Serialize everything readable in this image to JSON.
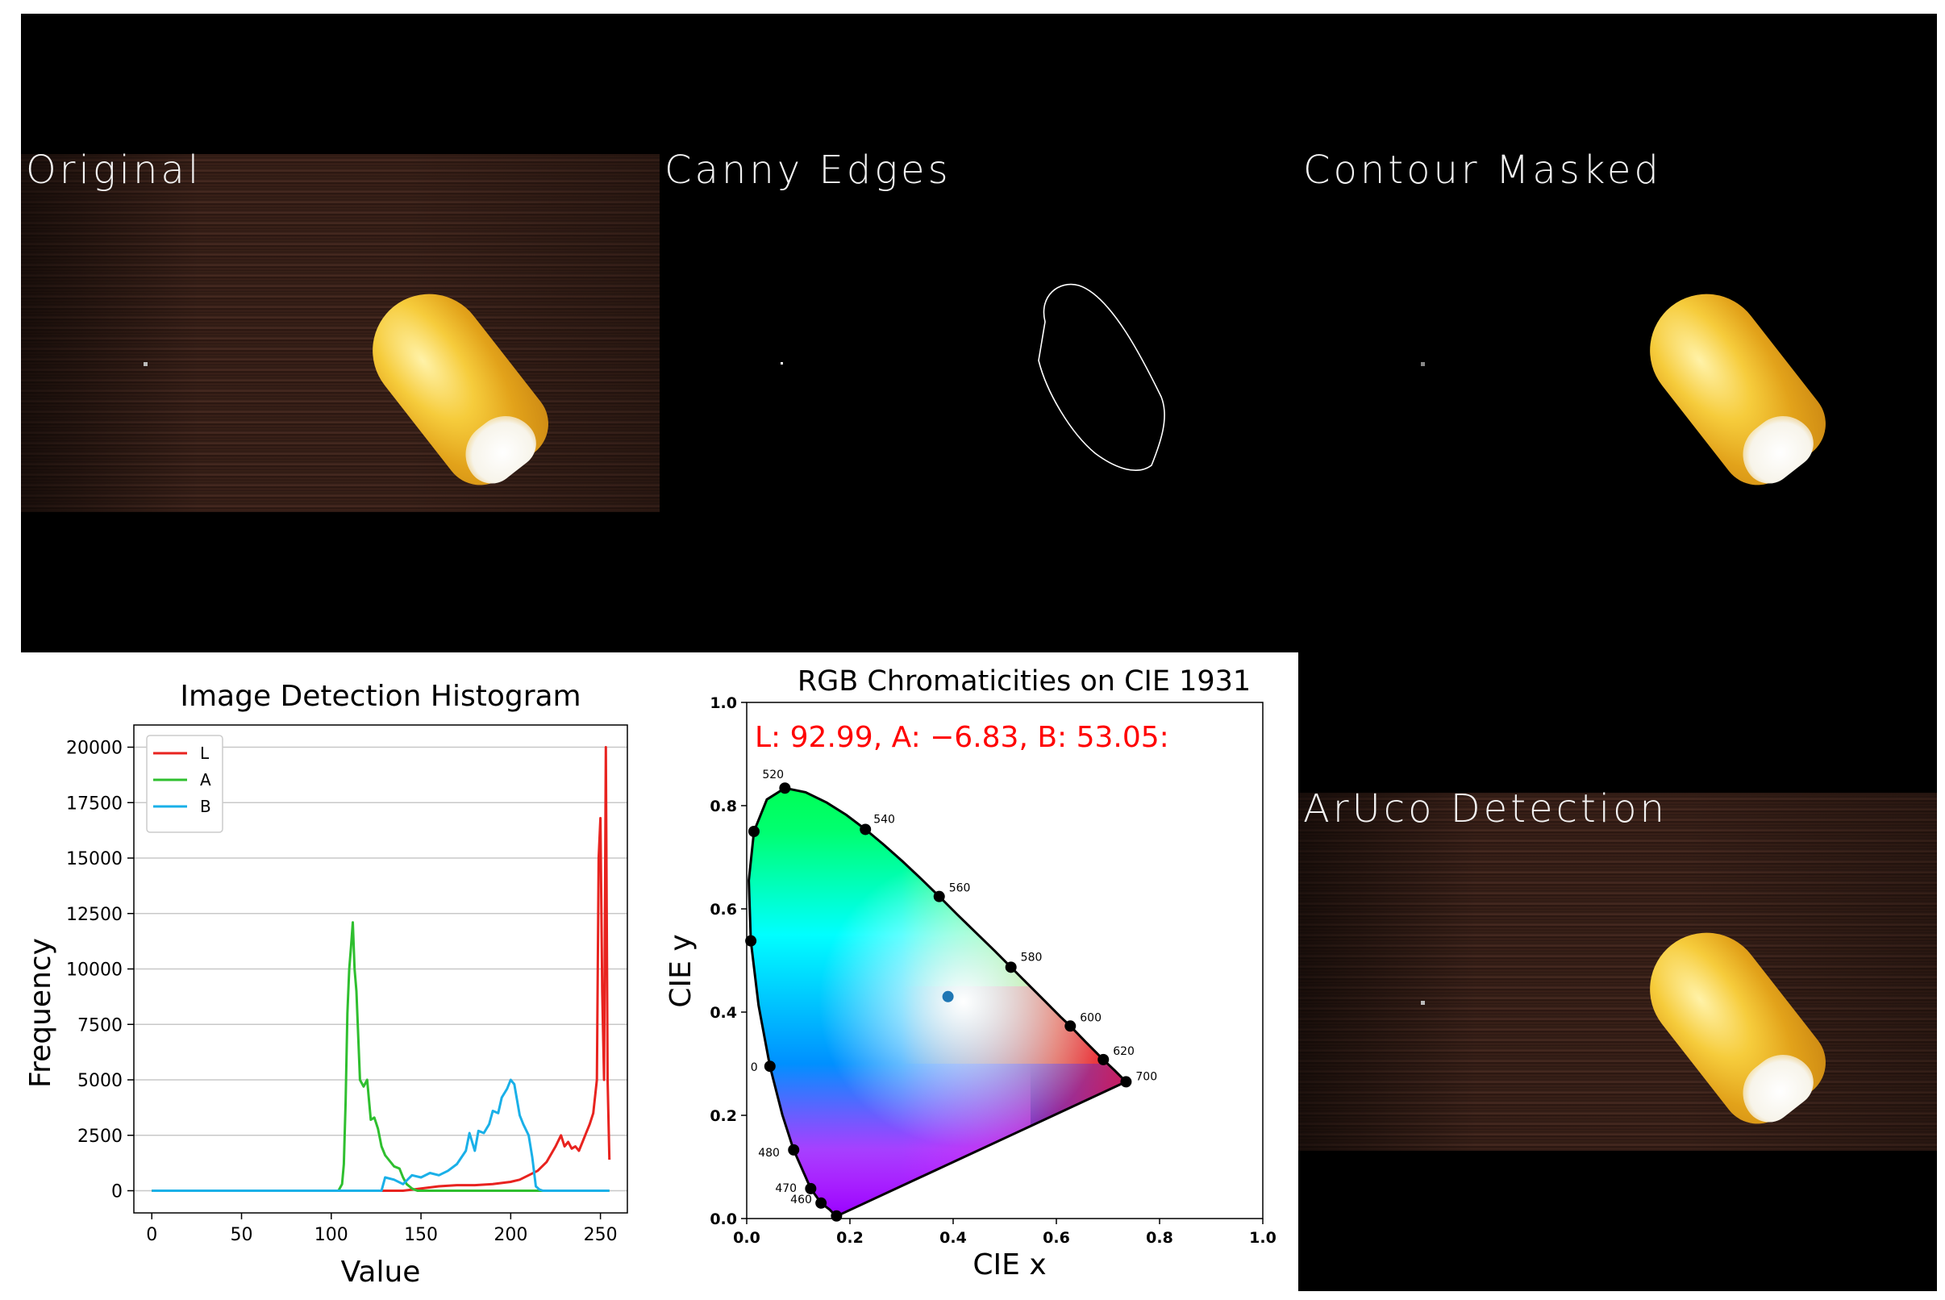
{
  "tiles": {
    "original": "Original",
    "canny": "Canny Edges",
    "contour": "Contour Masked",
    "aruco": "ArUco Detection"
  },
  "histogram": {
    "chart_data": {
      "type": "line",
      "title": "Image Detection Histogram",
      "xlabel": "Value",
      "ylabel": "Frequency",
      "xlim": [
        -10,
        265
      ],
      "ylim": [
        -1000,
        21000
      ],
      "xticks": [
        0,
        50,
        100,
        150,
        200,
        250
      ],
      "yticks": [
        0,
        2500,
        5000,
        7500,
        10000,
        12500,
        15000,
        17500,
        20000
      ],
      "grid": "horizontal",
      "legend": "top-left",
      "series": [
        {
          "name": "L",
          "color": "#e8231f",
          "x": [
            0,
            128,
            140,
            150,
            160,
            170,
            180,
            190,
            200,
            205,
            210,
            215,
            220,
            225,
            228,
            230,
            232,
            234,
            236,
            238,
            240,
            242,
            244,
            246,
            248,
            249,
            250,
            251,
            252,
            253,
            254,
            255
          ],
          "y": [
            0,
            0,
            0,
            100,
            200,
            250,
            250,
            300,
            400,
            500,
            700,
            900,
            1300,
            2000,
            2500,
            2000,
            2200,
            1900,
            2000,
            1800,
            2200,
            2600,
            3000,
            3500,
            5000,
            15000,
            16800,
            9000,
            5000,
            20000,
            5000,
            1400
          ]
        },
        {
          "name": "A",
          "color": "#2fbf2f",
          "x": [
            0,
            104,
            106,
            107,
            108,
            109,
            110,
            111,
            112,
            113,
            114,
            116,
            118,
            120,
            122,
            124,
            126,
            128,
            130,
            132,
            135,
            138,
            140,
            142,
            145,
            148,
            150,
            255
          ],
          "y": [
            0,
            0,
            300,
            1200,
            4000,
            8000,
            10000,
            11000,
            12100,
            10000,
            9000,
            5000,
            4700,
            5000,
            3200,
            3300,
            2800,
            2000,
            1600,
            1400,
            1100,
            1000,
            600,
            300,
            100,
            0,
            0,
            0
          ]
        },
        {
          "name": "B",
          "color": "#1ab0e8",
          "x": [
            0,
            125,
            128,
            130,
            135,
            140,
            145,
            150,
            155,
            160,
            165,
            170,
            175,
            177,
            180,
            182,
            185,
            188,
            190,
            193,
            195,
            198,
            200,
            202,
            205,
            207,
            210,
            212,
            214,
            216,
            218,
            255
          ],
          "y": [
            0,
            0,
            0,
            600,
            500,
            300,
            700,
            600,
            800,
            700,
            900,
            1200,
            1800,
            2600,
            1800,
            2700,
            2600,
            3000,
            3600,
            3500,
            4200,
            4600,
            5000,
            4800,
            3400,
            3000,
            2500,
            1500,
            200,
            50,
            0,
            0
          ]
        }
      ]
    }
  },
  "cie": {
    "chart_data": {
      "type": "scatter",
      "title": "RGB Chromaticities on CIE 1931",
      "annotation": "L: 92.99, A: −6.83, B: 53.05:",
      "xlabel": "CIE x",
      "ylabel": "CIE y",
      "xlim": [
        0.0,
        1.0
      ],
      "ylim": [
        0.0,
        1.0
      ],
      "xticks": [
        "0.0",
        "0.2",
        "0.4",
        "0.6",
        "0.8",
        "1.0"
      ],
      "yticks": [
        "0.0",
        "0.2",
        "0.4",
        "0.6",
        "0.8",
        "1.0"
      ],
      "point": {
        "x": 0.39,
        "y": 0.43,
        "color": "#1f77b4"
      },
      "wavelength_marks": [
        {
          "label": "460",
          "x": 0.144,
          "y": 0.03
        },
        {
          "label": "470",
          "x": 0.124,
          "y": 0.058
        },
        {
          "label": "480",
          "x": 0.091,
          "y": 0.133
        },
        {
          "label": "0",
          "x": 0.045,
          "y": 0.295
        },
        {
          "label": "520",
          "x": 0.074,
          "y": 0.834
        },
        {
          "label": "540",
          "x": 0.23,
          "y": 0.754
        },
        {
          "label": "560",
          "x": 0.373,
          "y": 0.624
        },
        {
          "label": "580",
          "x": 0.512,
          "y": 0.487
        },
        {
          "label": "600",
          "x": 0.627,
          "y": 0.373
        },
        {
          "label": "620",
          "x": 0.691,
          "y": 0.308
        },
        {
          "label": "700",
          "x": 0.735,
          "y": 0.265
        }
      ],
      "extra_dots": [
        {
          "x": 0.014,
          "y": 0.75
        },
        {
          "x": 0.008,
          "y": 0.538
        },
        {
          "x": 0.174,
          "y": 0.005
        }
      ]
    }
  }
}
